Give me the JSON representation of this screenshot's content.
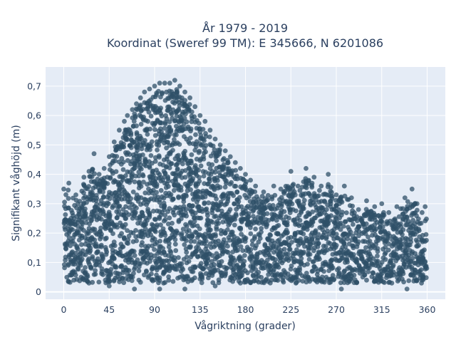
{
  "chart_data": {
    "type": "scatter",
    "title_line1": "År 1979 - 2019",
    "title_line2": "Koordinat (Sweref 99 TM): E 345666, N 6201086",
    "xlabel": "Vågriktning (grader)",
    "ylabel": "Signifikant våghöjd (m)",
    "xlim": [
      -18,
      378
    ],
    "ylim": [
      -0.025,
      0.765
    ],
    "x_ticks": [
      0,
      45,
      90,
      135,
      180,
      225,
      270,
      315,
      360
    ],
    "x_tick_labels": [
      "0",
      "45",
      "90",
      "135",
      "180",
      "225",
      "270",
      "315",
      "360"
    ],
    "y_ticks": [
      0,
      0.1,
      0.2,
      0.3,
      0.4,
      0.5,
      0.6,
      0.7
    ],
    "y_tick_labels": [
      "0",
      "0,1",
      "0,2",
      "0,3",
      "0,4",
      "0,5",
      "0,6",
      "0,7"
    ],
    "grid": true,
    "marker_color": "#2f5068",
    "marker_opacity": 0.75,
    "plot_background": "#e5ecf6",
    "series": [
      {
        "points": [
          [
            0,
            0.35
          ],
          [
            5,
            0.37
          ],
          [
            12,
            0.33
          ],
          [
            20,
            0.39
          ],
          [
            25,
            0.41
          ],
          [
            30,
            0.47
          ],
          [
            35,
            0.4
          ],
          [
            40,
            0.42
          ],
          [
            45,
            0.46
          ],
          [
            50,
            0.51
          ],
          [
            55,
            0.55
          ],
          [
            60,
            0.58
          ],
          [
            63,
            0.6
          ],
          [
            68,
            0.62
          ],
          [
            72,
            0.64
          ],
          [
            76,
            0.66
          ],
          [
            80,
            0.68
          ],
          [
            85,
            0.69
          ],
          [
            90,
            0.7
          ],
          [
            95,
            0.71
          ],
          [
            100,
            0.71
          ],
          [
            105,
            0.71
          ],
          [
            110,
            0.72
          ],
          [
            115,
            0.7
          ],
          [
            120,
            0.68
          ],
          [
            125,
            0.66
          ],
          [
            130,
            0.63
          ],
          [
            135,
            0.6
          ],
          [
            140,
            0.58
          ],
          [
            145,
            0.55
          ],
          [
            150,
            0.52
          ],
          [
            155,
            0.5
          ],
          [
            160,
            0.48
          ],
          [
            165,
            0.46
          ],
          [
            170,
            0.44
          ],
          [
            175,
            0.42
          ],
          [
            180,
            0.4
          ],
          [
            185,
            0.38
          ],
          [
            190,
            0.36
          ],
          [
            198,
            0.34
          ],
          [
            208,
            0.36
          ],
          [
            215,
            0.35
          ],
          [
            225,
            0.41
          ],
          [
            232,
            0.36
          ],
          [
            240,
            0.42
          ],
          [
            248,
            0.39
          ],
          [
            255,
            0.36
          ],
          [
            262,
            0.4
          ],
          [
            270,
            0.33
          ],
          [
            278,
            0.36
          ],
          [
            285,
            0.32
          ],
          [
            292,
            0.28
          ],
          [
            300,
            0.31
          ],
          [
            308,
            0.29
          ],
          [
            315,
            0.3
          ],
          [
            322,
            0.27
          ],
          [
            330,
            0.29
          ],
          [
            338,
            0.32
          ],
          [
            345,
            0.35
          ],
          [
            350,
            0.3
          ],
          [
            355,
            0.27
          ],
          [
            358,
            0.29
          ],
          [
            3,
            0.05
          ],
          [
            10,
            0.04
          ],
          [
            25,
            0.03
          ],
          [
            45,
            0.02
          ],
          [
            70,
            0.01
          ],
          [
            95,
            0.01
          ],
          [
            120,
            0.01
          ],
          [
            150,
            0.02
          ],
          [
            175,
            0.03
          ],
          [
            200,
            0.04
          ],
          [
            230,
            0.03
          ],
          [
            260,
            0.05
          ],
          [
            275,
            0.01
          ],
          [
            300,
            0.04
          ],
          [
            325,
            0.03
          ],
          [
            340,
            0.01
          ],
          [
            355,
            0.04
          ]
        ]
      }
    ]
  }
}
